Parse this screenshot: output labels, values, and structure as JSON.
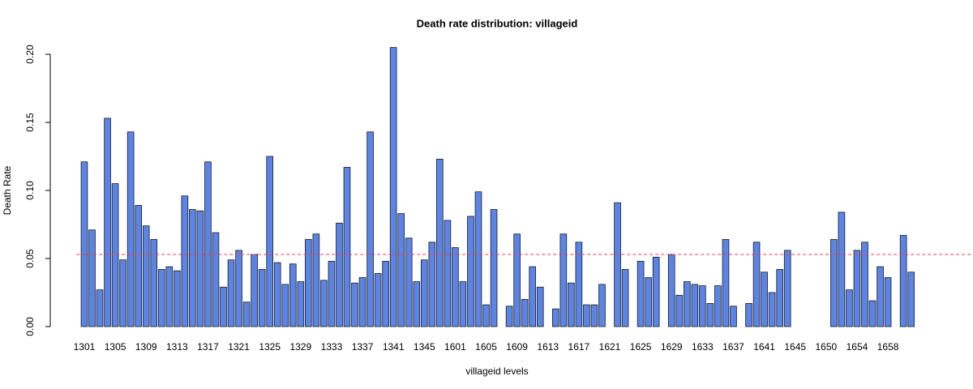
{
  "chart_data": {
    "type": "bar",
    "title": "Death rate distribution: villageid",
    "x_label": "villageid levels",
    "y_label": "Death Rate",
    "categories": [
      "1301",
      null,
      null,
      null,
      "1305",
      null,
      null,
      null,
      "1309",
      null,
      null,
      null,
      "1313",
      null,
      null,
      null,
      "1317",
      null,
      null,
      null,
      "1321",
      null,
      null,
      null,
      "1325",
      null,
      null,
      null,
      "1329",
      null,
      null,
      null,
      "1333",
      null,
      null,
      null,
      "1337",
      null,
      null,
      null,
      "1341",
      null,
      null,
      null,
      "1345",
      null,
      null,
      null,
      "1601",
      null,
      null,
      null,
      "1605",
      null,
      null,
      null,
      "1609",
      null,
      null,
      null,
      "1613",
      null,
      null,
      null,
      "1617",
      null,
      null,
      null,
      "1621",
      null,
      null,
      null,
      "1625",
      null,
      null,
      null,
      "1629",
      null,
      null,
      null,
      "1633",
      null,
      null,
      null,
      "1637",
      null,
      null,
      null,
      "1641",
      null,
      null,
      null,
      "1645",
      null,
      null,
      null,
      "1650",
      null,
      null,
      null,
      "1654",
      null,
      null,
      null,
      "1658",
      null,
      null,
      null
    ],
    "values": [
      0.121,
      0.071,
      0.027,
      0.153,
      0.105,
      0.049,
      0.143,
      0.089,
      0.074,
      0.064,
      0.042,
      0.044,
      0.041,
      0.096,
      0.086,
      0.085,
      0.121,
      0.069,
      0.029,
      0.049,
      0.056,
      0.018,
      0.053,
      0.042,
      0.125,
      0.047,
      0.031,
      0.046,
      0.033,
      0.064,
      0.068,
      0.034,
      0.048,
      0.076,
      0.117,
      0.032,
      0.036,
      0.143,
      0.039,
      0.048,
      0.205,
      0.083,
      0.065,
      0.033,
      0.049,
      0.062,
      0.123,
      0.078,
      0.058,
      0.033,
      0.081,
      0.099,
      0.016,
      0.086,
      0,
      0.015,
      0.068,
      0.02,
      0.044,
      0.029,
      0,
      0.013,
      0.068,
      0.032,
      0.062,
      0.016,
      0.016,
      0.031,
      0,
      0.091,
      0.042,
      0,
      0.048,
      0.036,
      0.051,
      0,
      0.053,
      0.023,
      0.033,
      0.031,
      0.03,
      0.017,
      0.03,
      0.064,
      0.015,
      0,
      0.017,
      0.062,
      0.04,
      0.025,
      0.042,
      0.056,
      0,
      0,
      0,
      0,
      0,
      0.064,
      0.084,
      0.027,
      0.056,
      0.062,
      0.019,
      0.044,
      0.036,
      0,
      0.067,
      0.04
    ],
    "color": "#5b84e6",
    "edge_color": "#1a1a1a",
    "ylim": [
      0,
      0.2
    ],
    "yticks": [
      {
        "value": 0,
        "label": "0.00"
      },
      {
        "value": 0.05,
        "label": "0.05"
      },
      {
        "value": 0.1,
        "label": "0.10"
      },
      {
        "value": 0.15,
        "label": "0.15"
      },
      {
        "value": 0.2,
        "label": "0.20"
      }
    ],
    "hline": {
      "value": 0.053,
      "color": "#e0455a",
      "dashed": true
    },
    "grid": false
  }
}
